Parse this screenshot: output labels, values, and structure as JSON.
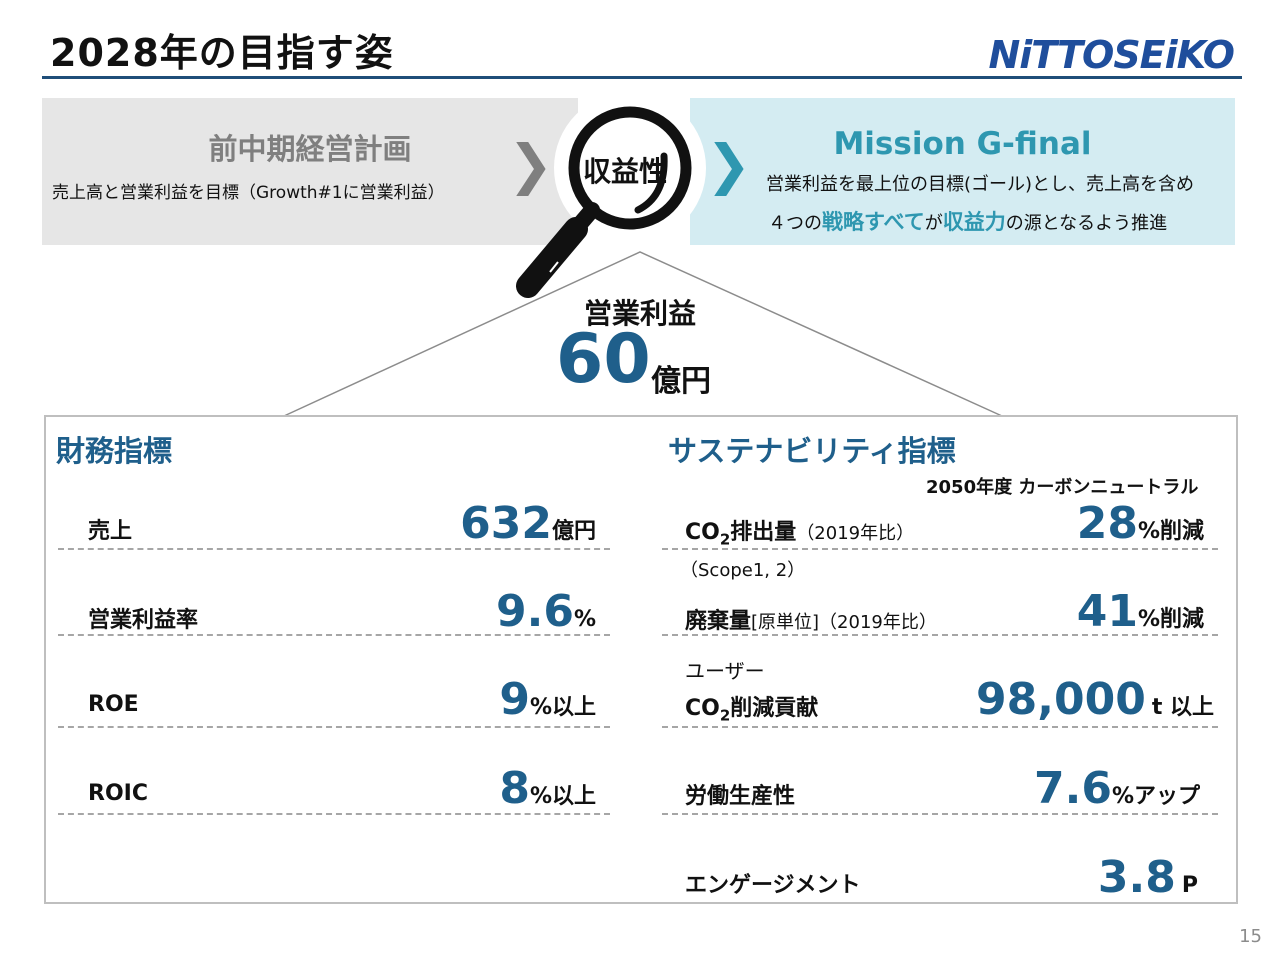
{
  "header": {
    "title": "2028年の目指す姿",
    "logo_text": "NiTTOSEiKO"
  },
  "previous_plan": {
    "title": "前中期経営計画",
    "text": "売上高と営業利益を目標（Growth#1に営業利益）"
  },
  "magnifier": {
    "label": "収益性"
  },
  "mission": {
    "title": "Mission G-final",
    "line1": "営業利益を最上位の目標(ゴール)とし、売上高を含め",
    "line2_a": "４つの",
    "line2_b": "戦略すべて",
    "line2_c": "が",
    "line2_d": "収益力",
    "line2_e": "の源となるよう推進"
  },
  "operating_profit": {
    "label": "営業利益",
    "value": "60",
    "unit": "億円"
  },
  "financial": {
    "title": "財務指標",
    "rows": [
      {
        "label": "売上",
        "value": "632",
        "unit": "億円"
      },
      {
        "label": "営業利益率",
        "value": "9.6",
        "unit": "%"
      },
      {
        "label": "ROE",
        "value": "9",
        "unit": "%以上"
      },
      {
        "label": "ROIC",
        "value": "8",
        "unit": "%以上"
      }
    ]
  },
  "sustainability": {
    "title": "サステナビリティ指標",
    "goal_note": "2050年度 カーボンニュートラル",
    "co2": {
      "label_a": "CO",
      "label_sub": "2",
      "label_b": "排出量",
      "note": "（2019年比）",
      "scope": "（Scope1, 2）",
      "value": "28",
      "unit": "%削減"
    },
    "waste": {
      "label": "廃棄量",
      "note": "[原単位]（2019年比）",
      "value": "41",
      "unit": "%削減"
    },
    "user_co2": {
      "pre": "ユーザー",
      "label_a": "CO",
      "label_sub": "2",
      "label_b": "削減貢献",
      "value": "98,000",
      "unit": "t 以上"
    },
    "productivity": {
      "label": "労働生産性",
      "value": "7.6",
      "unit": "%アップ"
    },
    "engagement": {
      "label": "エンゲージメント",
      "value": "3.8",
      "unit": "P"
    }
  },
  "page": {
    "number": "15"
  }
}
